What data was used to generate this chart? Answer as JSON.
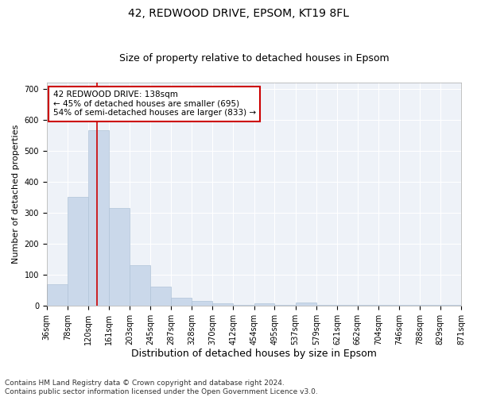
{
  "title": "42, REDWOOD DRIVE, EPSOM, KT19 8FL",
  "subtitle": "Size of property relative to detached houses in Epsom",
  "xlabel": "Distribution of detached houses by size in Epsom",
  "ylabel": "Number of detached properties",
  "footer_line1": "Contains HM Land Registry data © Crown copyright and database right 2024.",
  "footer_line2": "Contains public sector information licensed under the Open Government Licence v3.0.",
  "bar_edges": [
    36,
    78,
    120,
    161,
    203,
    245,
    287,
    328,
    370,
    412,
    454,
    495,
    537,
    579,
    621,
    662,
    704,
    746,
    788,
    829,
    871
  ],
  "bar_heights": [
    68,
    350,
    568,
    315,
    130,
    60,
    25,
    15,
    8,
    3,
    8,
    3,
    10,
    3,
    2,
    2,
    2,
    1,
    1,
    1
  ],
  "bar_color": "#cad8ea",
  "bar_edgecolor": "#b0c4d8",
  "red_line_x": 138,
  "annotation_title": "42 REDWOOD DRIVE: 138sqm",
  "annotation_line1": "← 45% of detached houses are smaller (695)",
  "annotation_line2": "54% of semi-detached houses are larger (833) →",
  "annotation_box_color": "#ffffff",
  "annotation_box_edgecolor": "#cc0000",
  "ylim": [
    0,
    720
  ],
  "yticks": [
    0,
    100,
    200,
    300,
    400,
    500,
    600,
    700
  ],
  "tick_labels": [
    "36sqm",
    "78sqm",
    "120sqm",
    "161sqm",
    "203sqm",
    "245sqm",
    "287sqm",
    "328sqm",
    "370sqm",
    "412sqm",
    "454sqm",
    "495sqm",
    "537sqm",
    "579sqm",
    "621sqm",
    "662sqm",
    "704sqm",
    "746sqm",
    "788sqm",
    "829sqm",
    "871sqm"
  ],
  "background_color": "#eef2f8",
  "grid_color": "#ffffff",
  "title_fontsize": 10,
  "subtitle_fontsize": 9,
  "axis_label_fontsize": 8,
  "tick_fontsize": 7,
  "annotation_fontsize": 7.5,
  "footer_fontsize": 6.5,
  "ylabel_fontsize": 8
}
